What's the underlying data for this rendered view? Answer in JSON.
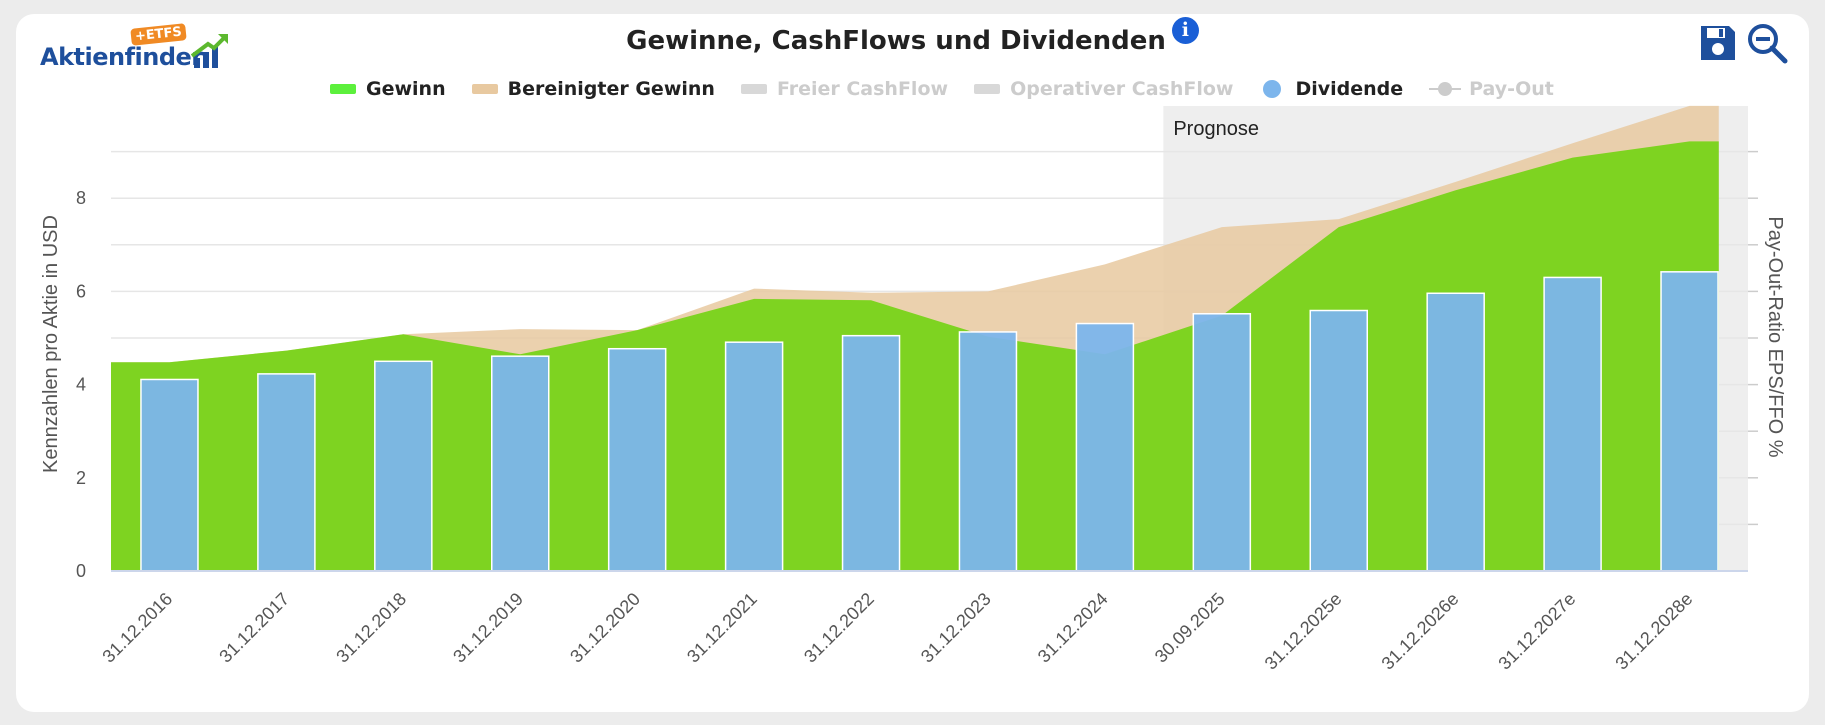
{
  "logo": {
    "text": "Aktienfinder",
    "badge": "+ETFS"
  },
  "title": "Gewinne, CashFlows und Dividenden",
  "toolbar": {
    "save_icon": "save-icon",
    "zoom_icon": "zoom-out-icon",
    "info_icon": "info-icon"
  },
  "legend": [
    {
      "label": "Gewinn",
      "color": "#5cf03c",
      "active": true,
      "marker": "bar"
    },
    {
      "label": "Bereinigter Gewinn",
      "color": "#e8c9a0",
      "active": true,
      "marker": "bar"
    },
    {
      "label": "Freier CashFlow",
      "color": "#d8d8d8",
      "active": false,
      "marker": "bar"
    },
    {
      "label": "Operativer CashFlow",
      "color": "#d8d8d8",
      "active": false,
      "marker": "bar"
    },
    {
      "label": "Dividende",
      "color": "#7cb5ec",
      "active": true,
      "marker": "dot"
    },
    {
      "label": "Pay-Out",
      "color": "#cccccc",
      "active": false,
      "marker": "line-dot"
    }
  ],
  "chart_data": {
    "type": "bar",
    "categories": [
      "31.12.2016",
      "31.12.2017",
      "31.12.2018",
      "31.12.2019",
      "31.12.2020",
      "31.12.2021",
      "31.12.2022",
      "31.12.2023",
      "31.12.2024",
      "30.09.2025",
      "31.12.2025e",
      "31.12.2026e",
      "31.12.2027e",
      "31.12.2028e"
    ],
    "series": [
      {
        "name": "Gewinn",
        "type": "area",
        "color": "#7ed321",
        "values": [
          4.48,
          4.73,
          5.08,
          4.65,
          5.17,
          5.84,
          5.81,
          5.03,
          4.65,
          5.48,
          7.38,
          8.17,
          8.87,
          9.22
        ]
      },
      {
        "name": "Bereinigter Gewinn",
        "type": "area",
        "color": "#e8c9a0",
        "values": [
          4.48,
          4.73,
          5.08,
          5.19,
          5.17,
          6.06,
          5.97,
          6.0,
          6.58,
          7.38,
          7.55,
          8.35,
          9.18,
          9.98
        ]
      },
      {
        "name": "Dividende",
        "type": "bar",
        "color": "#7cb5ec",
        "values": [
          4.11,
          4.23,
          4.5,
          4.61,
          4.77,
          4.91,
          5.05,
          5.13,
          5.31,
          5.52,
          5.59,
          5.96,
          6.3,
          6.42
        ]
      }
    ],
    "y_ticks": [
      0,
      2,
      4,
      6,
      8
    ],
    "ylim": [
      0,
      10
    ],
    "ylabel": "Kennzahlen pro Aktie in USD",
    "y2label": "Pay-Out-Ratio EPS/FFO %",
    "forecast_label": "Prognose",
    "forecast_start_category": "30.09.2025",
    "grid": true
  }
}
